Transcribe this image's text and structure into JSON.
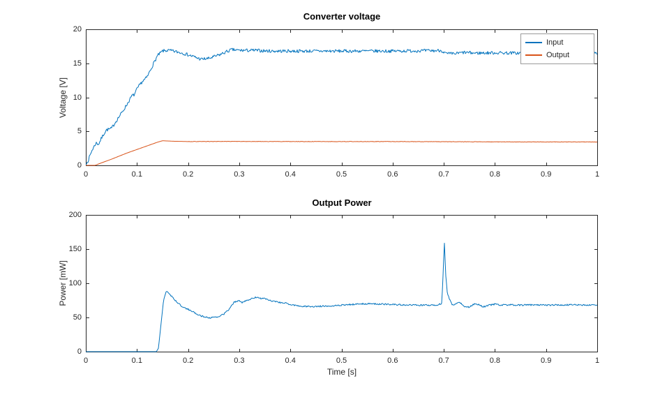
{
  "figure": {
    "background": "#ffffff",
    "axis_color": "#262626",
    "tick_label_color": "#262626"
  },
  "chart_data": [
    {
      "type": "line",
      "title": "Converter voltage",
      "xlabel": "",
      "ylabel": "Voltage [V]",
      "xlim": [
        0,
        1
      ],
      "ylim": [
        0,
        20
      ],
      "xticks": [
        0,
        0.1,
        0.2,
        0.3,
        0.4,
        0.5,
        0.6,
        0.7,
        0.8,
        0.9,
        1
      ],
      "xtick_labels": [
        "0",
        "0.1",
        "0.2",
        "0.3",
        "0.4",
        "0.5",
        "0.6",
        "0.7",
        "0.8",
        "0.9",
        "1"
      ],
      "yticks": [
        0,
        5,
        10,
        15,
        20
      ],
      "ytick_labels": [
        "0",
        "5",
        "10",
        "15",
        "20"
      ],
      "grid": false,
      "legend": {
        "position": "northeast",
        "entries": [
          "Input",
          "Output"
        ]
      },
      "series": [
        {
          "name": "Input",
          "color": "#0072BD",
          "noise": 0.24,
          "noise_from": 0.004,
          "points": [
            [
              0,
              0
            ],
            [
              0.005,
              0.8
            ],
            [
              0.012,
              2.2
            ],
            [
              0.02,
              3.3
            ],
            [
              0.025,
              3.1
            ],
            [
              0.03,
              3.9
            ],
            [
              0.035,
              4.6
            ],
            [
              0.04,
              5.2
            ],
            [
              0.05,
              5.4
            ],
            [
              0.055,
              6.0
            ],
            [
              0.06,
              6.6
            ],
            [
              0.07,
              7.7
            ],
            [
              0.08,
              8.9
            ],
            [
              0.09,
              10.2
            ],
            [
              0.095,
              10.4
            ],
            [
              0.1,
              11.2
            ],
            [
              0.11,
              12.3
            ],
            [
              0.115,
              12.6
            ],
            [
              0.12,
              13.0
            ],
            [
              0.13,
              14.6
            ],
            [
              0.14,
              16.1
            ],
            [
              0.15,
              16.8
            ],
            [
              0.16,
              16.9
            ],
            [
              0.17,
              16.8
            ],
            [
              0.19,
              16.5
            ],
            [
              0.21,
              16.0
            ],
            [
              0.225,
              15.6
            ],
            [
              0.24,
              15.7
            ],
            [
              0.26,
              16.2
            ],
            [
              0.275,
              16.7
            ],
            [
              0.285,
              17.0
            ],
            [
              0.3,
              16.9
            ],
            [
              0.33,
              16.9
            ],
            [
              0.36,
              16.8
            ],
            [
              0.4,
              16.8
            ],
            [
              0.5,
              16.8
            ],
            [
              0.6,
              16.8
            ],
            [
              0.65,
              16.85
            ],
            [
              0.68,
              16.85
            ],
            [
              0.695,
              16.9
            ],
            [
              0.705,
              16.4
            ],
            [
              0.72,
              16.4
            ],
            [
              0.74,
              16.6
            ],
            [
              0.76,
              16.5
            ],
            [
              0.8,
              16.55
            ],
            [
              0.85,
              16.5
            ],
            [
              0.9,
              16.55
            ],
            [
              0.95,
              16.5
            ],
            [
              1,
              16.5
            ]
          ]
        },
        {
          "name": "Output",
          "color": "#D95319",
          "noise": 0.03,
          "noise_from": 0.2,
          "points": [
            [
              0,
              0
            ],
            [
              0.018,
              0
            ],
            [
              0.03,
              0.35
            ],
            [
              0.05,
              0.9
            ],
            [
              0.08,
              1.8
            ],
            [
              0.11,
              2.6
            ],
            [
              0.14,
              3.4
            ],
            [
              0.15,
              3.62
            ],
            [
              0.17,
              3.55
            ],
            [
              0.2,
              3.5
            ],
            [
              0.3,
              3.52
            ],
            [
              0.4,
              3.5
            ],
            [
              0.5,
              3.5
            ],
            [
              0.6,
              3.5
            ],
            [
              0.7,
              3.48
            ],
            [
              0.8,
              3.45
            ],
            [
              0.9,
              3.45
            ],
            [
              1,
              3.45
            ]
          ]
        }
      ]
    },
    {
      "type": "line",
      "title": "Output Power",
      "xlabel": "Time [s]",
      "ylabel": "Power [mW]",
      "xlim": [
        0,
        1
      ],
      "ylim": [
        0,
        200
      ],
      "xticks": [
        0,
        0.1,
        0.2,
        0.3,
        0.4,
        0.5,
        0.6,
        0.7,
        0.8,
        0.9,
        1
      ],
      "xtick_labels": [
        "0",
        "0.1",
        "0.2",
        "0.3",
        "0.4",
        "0.5",
        "0.6",
        "0.7",
        "0.8",
        "0.9",
        "1"
      ],
      "yticks": [
        0,
        50,
        100,
        150,
        200
      ],
      "ytick_labels": [
        "0",
        "50",
        "100",
        "150",
        "200"
      ],
      "grid": false,
      "legend": null,
      "series": [
        {
          "name": "Power",
          "color": "#0072BD",
          "noise": 1.1,
          "noise_from": 0.155,
          "points": [
            [
              0,
              0
            ],
            [
              0.138,
              0
            ],
            [
              0.142,
              5
            ],
            [
              0.147,
              40
            ],
            [
              0.152,
              75
            ],
            [
              0.157,
              88
            ],
            [
              0.162,
              86
            ],
            [
              0.17,
              79
            ],
            [
              0.18,
              71
            ],
            [
              0.19,
              65
            ],
            [
              0.2,
              62
            ],
            [
              0.21,
              58
            ],
            [
              0.22,
              54
            ],
            [
              0.23,
              51
            ],
            [
              0.245,
              49.5
            ],
            [
              0.26,
              51
            ],
            [
              0.27,
              55
            ],
            [
              0.28,
              62
            ],
            [
              0.285,
              68
            ],
            [
              0.29,
              72
            ],
            [
              0.295,
              74
            ],
            [
              0.3,
              75
            ],
            [
              0.305,
              72
            ],
            [
              0.31,
              73
            ],
            [
              0.315,
              75
            ],
            [
              0.32,
              76
            ],
            [
              0.33,
              79
            ],
            [
              0.335,
              80
            ],
            [
              0.34,
              78
            ],
            [
              0.35,
              77.5
            ],
            [
              0.36,
              75
            ],
            [
              0.37,
              73
            ],
            [
              0.38,
              72
            ],
            [
              0.39,
              71
            ],
            [
              0.4,
              69
            ],
            [
              0.41,
              67.5
            ],
            [
              0.42,
              66.5
            ],
            [
              0.44,
              66
            ],
            [
              0.46,
              66.5
            ],
            [
              0.48,
              67
            ],
            [
              0.5,
              68
            ],
            [
              0.52,
              69
            ],
            [
              0.54,
              70
            ],
            [
              0.56,
              70
            ],
            [
              0.58,
              69.5
            ],
            [
              0.6,
              69
            ],
            [
              0.62,
              68.5
            ],
            [
              0.64,
              68
            ],
            [
              0.66,
              68
            ],
            [
              0.68,
              68
            ],
            [
              0.69,
              69
            ],
            [
              0.696,
              70
            ],
            [
              0.699,
              120
            ],
            [
              0.701,
              162
            ],
            [
              0.704,
              110
            ],
            [
              0.707,
              85
            ],
            [
              0.712,
              75
            ],
            [
              0.715,
              70
            ],
            [
              0.72,
              68
            ],
            [
              0.725,
              71
            ],
            [
              0.73,
              73
            ],
            [
              0.735,
              70
            ],
            [
              0.74,
              66
            ],
            [
              0.75,
              65
            ],
            [
              0.755,
              68
            ],
            [
              0.76,
              70
            ],
            [
              0.77,
              69
            ],
            [
              0.775,
              66
            ],
            [
              0.78,
              66
            ],
            [
              0.79,
              68
            ],
            [
              0.8,
              69.5
            ],
            [
              0.81,
              68
            ],
            [
              0.83,
              68.5
            ],
            [
              0.85,
              68
            ],
            [
              0.88,
              68.5
            ],
            [
              0.9,
              68
            ],
            [
              0.95,
              68.5
            ],
            [
              1,
              68
            ]
          ]
        }
      ]
    }
  ]
}
